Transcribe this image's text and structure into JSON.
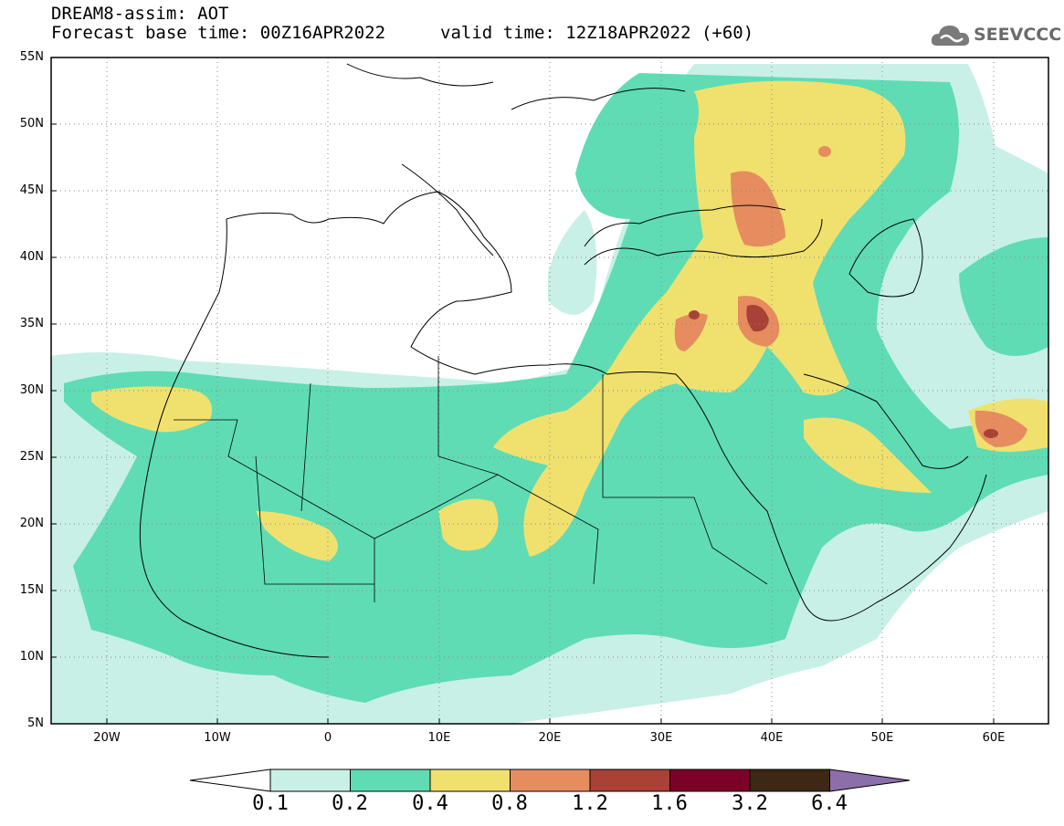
{
  "header": {
    "title": "DREAM8-assim: AOT",
    "base_time": "Forecast base time: 00Z16APR2022",
    "valid_time": "valid time: 12Z18APR2022 (+60)"
  },
  "logo": {
    "text": "SEEVCCC",
    "icon": "cloud-icon"
  },
  "map": {
    "lat_labels": [
      "55N",
      "50N",
      "45N",
      "40N",
      "35N",
      "30N",
      "25N",
      "20N",
      "15N",
      "10N",
      "5N"
    ],
    "lon_labels": [
      "20W",
      "10W",
      "0",
      "10E",
      "20E",
      "30E",
      "40E",
      "50E",
      "60E"
    ],
    "lon_range": [
      -25,
      65
    ],
    "lat_range": [
      5,
      55
    ],
    "grid": "dotted"
  },
  "colorbar": {
    "labels": [
      "0.1",
      "0.2",
      "0.4",
      "0.8",
      "1.2",
      "1.6",
      "3.2",
      "6.4"
    ],
    "colors": [
      "#ffffff",
      "#c8f0e6",
      "#5fdcb4",
      "#f0e16e",
      "#e68c5f",
      "#aa4137",
      "#7d0028",
      "#3c2814",
      "#8c6eaa"
    ]
  },
  "chart_data": {
    "type": "heatmap",
    "title": "DREAM8-assim: AOT",
    "levels": [
      0.1,
      0.2,
      0.4,
      0.8,
      1.2,
      1.6,
      3.2,
      6.4
    ],
    "xlim": [
      -25,
      65
    ],
    "ylim": [
      5,
      55
    ]
  }
}
